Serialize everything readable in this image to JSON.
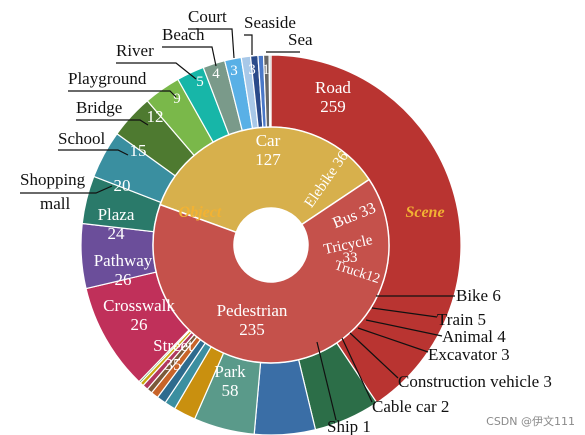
{
  "chart_data": {
    "type": "pie",
    "variant": "sunburst",
    "inner_ring": [
      {
        "label": "Car",
        "value": 127,
        "color": "#d7b04c"
      },
      {
        "label": "Pedestrian",
        "value": 235,
        "color": "#c5514b"
      }
    ],
    "outer_ring": {
      "Object": [
        {
          "label": "Road",
          "value": 259,
          "color": "#b93431"
        },
        {
          "label": "Elebike",
          "value": 36,
          "color": "#2c6e48"
        },
        {
          "label": "Bus",
          "value": 33,
          "color": "#3a6ea6"
        },
        {
          "label": "Tricycle",
          "value": 33,
          "color": "#5a9a8a"
        },
        {
          "label": "Truck",
          "value": 12,
          "color": "#c9900f"
        },
        {
          "label": "Bike",
          "value": 6,
          "color": "#3b8fa0"
        },
        {
          "label": "Train",
          "value": 5,
          "color": "#2e6b8e"
        },
        {
          "label": "Animal",
          "value": 4,
          "color": "#c86429"
        },
        {
          "label": "Excavator",
          "value": 3,
          "color": "#7a5a3a"
        },
        {
          "label": "Construction vehicle",
          "value": 3,
          "color": "#b0385e"
        },
        {
          "label": "Cable car",
          "value": 2,
          "color": "#c9a80f"
        },
        {
          "label": "Ship",
          "value": 1,
          "color": "#4a9a4a"
        }
      ],
      "Scene": [
        {
          "label": "Park",
          "value": 58,
          "color": "#c0305a"
        },
        {
          "label": "Street",
          "value": 35,
          "color": "#6b4e9a"
        },
        {
          "label": "Crosswalk",
          "value": 26,
          "color": "#2a7a6a"
        },
        {
          "label": "Pathway",
          "value": 26,
          "color": "#3a8fa0"
        },
        {
          "label": "Plaza",
          "value": 24,
          "color": "#4e7a30"
        },
        {
          "label": "Shopping mall",
          "value": 20,
          "color": "#7ab84a"
        },
        {
          "label": "School",
          "value": 15,
          "color": "#17b6a8"
        },
        {
          "label": "Bridge",
          "value": 12,
          "color": "#7a9a8a"
        },
        {
          "label": "Playground",
          "value": 9,
          "color": "#59b0e6"
        },
        {
          "label": "River",
          "value": 5,
          "color": "#a8c8e8"
        },
        {
          "label": "Beach",
          "value": 4,
          "color": "#2a4a8a"
        },
        {
          "label": "Court",
          "value": 3,
          "color": "#4a78c8"
        },
        {
          "label": "Seaside",
          "value": 3,
          "color": "#666666"
        },
        {
          "label": "Sea",
          "value": 1,
          "color": "#b8b8b8"
        }
      ]
    },
    "category_labels": [
      "Object",
      "Scene"
    ]
  },
  "watermark": "CSDN @伊文111"
}
